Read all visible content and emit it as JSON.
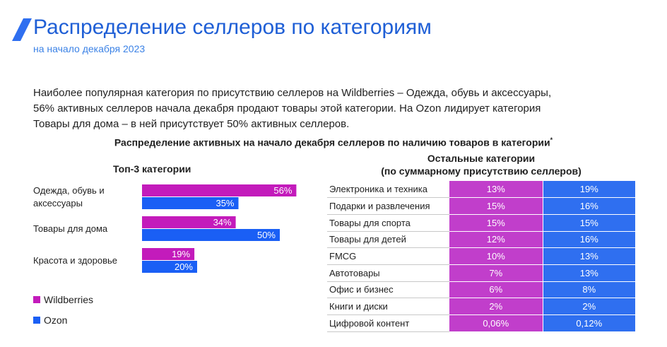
{
  "header": {
    "title": "Распределение селлеров по категориям",
    "subtitle": "на начало декабря 2023"
  },
  "description": [
    "Наиболее популярная категория по присутствию селлеров на Wildberries – Одежда, обувь и аксессуары,",
    "56% активных селлеров начала декабря продают товары этой категории. На Ozon лидирует категория",
    "Товары для дома – в ней присутствует 50% активных селлеров."
  ],
  "chart_heading": "Распределение активных на начало декабря селлеров по наличию товаров в категории",
  "chart_heading_mark": "*",
  "colors": {
    "wildberries": "#c31bbb",
    "ozon": "#1a5ff5",
    "wb_table": "#c13ecb",
    "ozon_table": "#2f6ff0"
  },
  "chart_data": [
    {
      "type": "bar",
      "orientation": "horizontal",
      "title": "Топ-3 категории",
      "categories": [
        "Одежда, обувь и аксессуары",
        "Товары для дома",
        "Красота и здоровье"
      ],
      "series": [
        {
          "name": "Wildberries",
          "values": [
            56,
            34,
            19
          ],
          "labels": [
            "56%",
            "34%",
            "19%"
          ]
        },
        {
          "name": "Ozon",
          "values": [
            35,
            50,
            20
          ],
          "labels": [
            "35%",
            "50%",
            "20%"
          ]
        }
      ],
      "xlim": [
        0,
        60
      ],
      "grid": false,
      "legend": "bottom-left"
    },
    {
      "type": "table",
      "title": "Остальные категории",
      "subtitle": "(по суммарному присутствию селлеров)",
      "rows": [
        {
          "category": "Электроника и техника",
          "wildberries": "13%",
          "ozon": "19%"
        },
        {
          "category": "Подарки и развлечения",
          "wildberries": "15%",
          "ozon": "16%"
        },
        {
          "category": "Товары для спорта",
          "wildberries": "15%",
          "ozon": "15%"
        },
        {
          "category": "Товары для детей",
          "wildberries": "12%",
          "ozon": "16%"
        },
        {
          "category": "FMCG",
          "wildberries": "10%",
          "ozon": "13%"
        },
        {
          "category": "Автотовары",
          "wildberries": "7%",
          "ozon": "13%"
        },
        {
          "category": "Офис и бизнес",
          "wildberries": "6%",
          "ozon": "8%"
        },
        {
          "category": "Книги и диски",
          "wildberries": "2%",
          "ozon": "2%"
        },
        {
          "category": "Цифровой контент",
          "wildberries": "0,06%",
          "ozon": "0,12%"
        }
      ]
    }
  ]
}
